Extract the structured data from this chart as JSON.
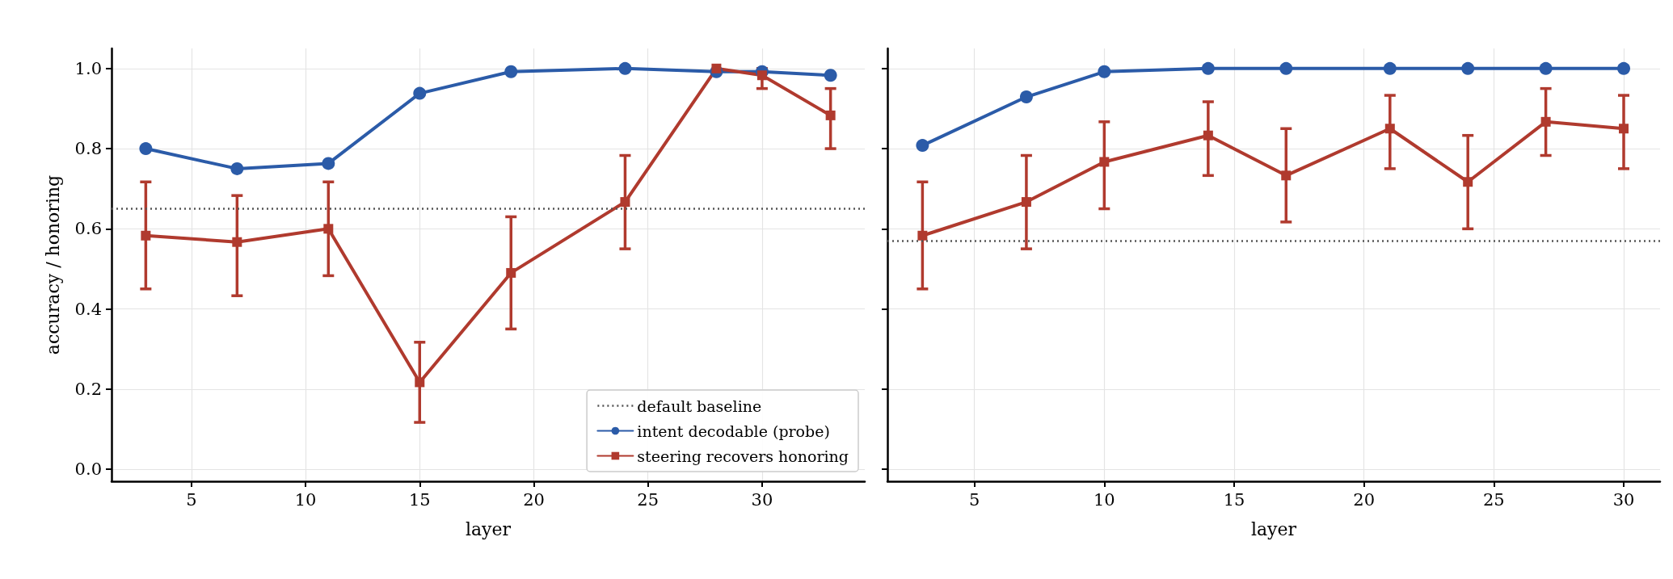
{
  "chart_data": [
    {
      "type": "line",
      "xlabel": "layer",
      "ylabel": "accuracy / honoring",
      "xlim": [
        1.5,
        34.5
      ],
      "xticks": [
        5,
        10,
        15,
        20,
        25,
        30
      ],
      "ylim": [
        -0.03,
        1.05
      ],
      "yticks": [
        {
          "value": 0,
          "label": "0.0"
        },
        0.2,
        0.4,
        0.6,
        0.8,
        {
          "value": 1,
          "label": "1.0"
        }
      ],
      "grid": true,
      "legend": "bottom right",
      "ref_lines": [
        {
          "axis": "y",
          "value": 0.65,
          "label": "default baseline",
          "color": "#555555",
          "line_style": "dotted"
        }
      ],
      "series": [
        {
          "name": "intent decodable (probe)",
          "color": "#2b5ba8",
          "marker": "circle",
          "x": [
            3,
            7,
            11,
            15,
            19,
            24,
            28,
            30,
            33
          ],
          "values": [
            0.8,
            0.75,
            0.763,
            0.938,
            0.992,
            1.0,
            0.992,
            0.992,
            0.983
          ]
        },
        {
          "name": "steering recovers honoring",
          "color": "#b03a2e",
          "marker": "square",
          "x": [
            3,
            7,
            11,
            15,
            19,
            24,
            28,
            30,
            33
          ],
          "values": [
            0.583,
            0.567,
            0.6,
            0.217,
            0.49,
            0.667,
            1.0,
            0.983,
            0.883
          ],
          "errors": [
            [
              0.45,
              0.717
            ],
            [
              0.433,
              0.683
            ],
            [
              0.483,
              0.717
            ],
            [
              0.117,
              0.317
            ],
            [
              0.35,
              0.63
            ],
            [
              0.55,
              0.783
            ],
            null,
            [
              0.95,
              1.0
            ],
            [
              0.8,
              0.95
            ]
          ]
        }
      ]
    },
    {
      "type": "line",
      "xlabel": "layer",
      "xlim": [
        1.65,
        31.4
      ],
      "xticks": [
        5,
        10,
        15,
        20,
        25,
        30
      ],
      "ylim": [
        -0.03,
        1.05
      ],
      "yticks": [
        0,
        0.2,
        0.4,
        0.6,
        0.8,
        1
      ],
      "tick_labels": "x",
      "grid": true,
      "ref_lines": [
        {
          "axis": "y",
          "value": 0.567,
          "color": "#555555",
          "line_style": "dotted"
        }
      ],
      "series": [
        {
          "color": "#2b5ba8",
          "marker": "circle",
          "x": [
            3,
            7,
            10,
            14,
            17,
            21,
            24,
            27,
            30
          ],
          "values": [
            0.808,
            0.929,
            0.992,
            1,
            1,
            1,
            1,
            1,
            1
          ]
        },
        {
          "color": "#b03a2e",
          "marker": "square",
          "x": [
            3,
            7,
            10,
            14,
            17,
            21,
            24,
            27,
            30
          ],
          "values": [
            0.583,
            0.667,
            0.767,
            0.833,
            0.733,
            0.85,
            0.717,
            0.867,
            0.85
          ],
          "errors": [
            [
              0.45,
              0.717
            ],
            [
              0.55,
              0.783
            ],
            [
              0.65,
              0.867
            ],
            [
              0.733,
              0.917
            ],
            [
              0.617,
              0.85
            ],
            [
              0.75,
              0.933
            ],
            [
              0.6,
              0.833
            ],
            [
              0.783,
              0.95
            ],
            [
              0.75,
              0.933
            ]
          ]
        }
      ]
    }
  ]
}
